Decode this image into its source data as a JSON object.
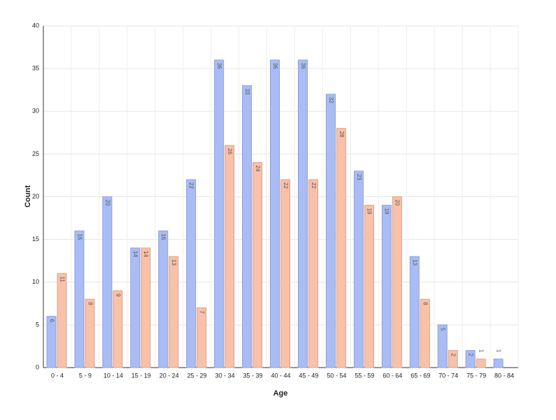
{
  "chart_data": {
    "type": "bar",
    "x_label": "Age",
    "y_label": "Count",
    "categories": [
      "0 - 4",
      "5 - 9",
      "10 - 14",
      "15 - 19",
      "20 - 24",
      "25 - 29",
      "30 - 34",
      "35 - 39",
      "40 - 44",
      "45 - 49",
      "50 - 54",
      "55 - 59",
      "60 - 64",
      "65 - 69",
      "70 - 74",
      "75 - 79",
      "80 - 84"
    ],
    "series": [
      {
        "color": "#a9bcf5",
        "values": [
          6,
          16,
          20,
          14,
          16,
          22,
          36,
          33,
          36,
          36,
          32,
          23,
          19,
          13,
          5,
          2,
          1
        ]
      },
      {
        "color": "#f9c1a9",
        "values": [
          11,
          8,
          9,
          14,
          13,
          7,
          26,
          24,
          22,
          22,
          28,
          19,
          20,
          8,
          2,
          1,
          null
        ]
      }
    ],
    "ylim": [
      0,
      40
    ],
    "yticks": [
      0,
      5,
      10,
      15,
      20,
      25,
      30,
      35,
      40
    ],
    "grid": true
  }
}
